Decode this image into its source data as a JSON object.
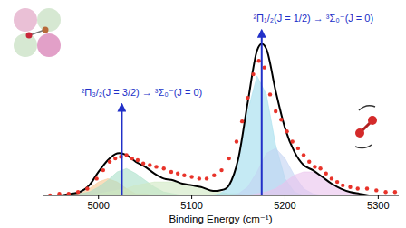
{
  "chart_data": {
    "type": "line",
    "x_label": "Binding Energy (cm⁻¹)",
    "xlim": [
      4940,
      5322
    ],
    "xticks": [
      5000,
      5100,
      5200,
      5300
    ],
    "ylim": [
      0,
      1
    ],
    "tick_labels": "x",
    "grid": false,
    "series": [
      {
        "type": "area",
        "color": "#f6c690",
        "x": [
          4940,
          4950,
          4960,
          4970,
          4980,
          4990,
          5000,
          5010,
          5020,
          5030,
          5040,
          5050,
          5060,
          5070,
          5080
        ],
        "values": [
          0,
          0,
          0,
          0.01,
          0.01,
          0.04,
          0.08,
          0.1,
          0.08,
          0.04,
          0.01,
          0.01,
          0,
          0,
          0
        ]
      },
      {
        "type": "area",
        "color": "#a8e0c8",
        "x": [
          4970,
          4980,
          4990,
          5000,
          5010,
          5020,
          5030,
          5040,
          5050,
          5060,
          5070,
          5080,
          5090
        ],
        "values": [
          0,
          0.01,
          0.02,
          0.05,
          0.09,
          0.14,
          0.16,
          0.13,
          0.09,
          0.05,
          0.02,
          0.01,
          0
        ]
      },
      {
        "type": "area",
        "color": "#cfe8c2",
        "x": [
          4990,
          5000,
          5010,
          5020,
          5030,
          5040,
          5050,
          5060,
          5070,
          5080,
          5090,
          5100,
          5110,
          5120,
          5130,
          5140,
          5150,
          5160
        ],
        "values": [
          0,
          0.01,
          0.02,
          0.03,
          0.04,
          0.06,
          0.07,
          0.08,
          0.08,
          0.08,
          0.07,
          0.06,
          0.05,
          0.03,
          0.02,
          0.01,
          0.01,
          0
        ]
      },
      {
        "type": "area",
        "color": "#9fdcec",
        "x": [
          5120,
          5130,
          5140,
          5150,
          5160,
          5170,
          5180,
          5190,
          5200,
          5210,
          5220
        ],
        "values": [
          0,
          0.01,
          0.05,
          0.2,
          0.5,
          0.71,
          0.6,
          0.3,
          0.1,
          0.02,
          0
        ]
      },
      {
        "type": "area",
        "color": "#c2d2f2",
        "x": [
          5140,
          5150,
          5160,
          5170,
          5180,
          5190,
          5200,
          5210,
          5220,
          5230,
          5240
        ],
        "values": [
          0,
          0.01,
          0.05,
          0.14,
          0.25,
          0.28,
          0.22,
          0.12,
          0.04,
          0.01,
          0
        ]
      },
      {
        "type": "area",
        "color": "#eac2ec",
        "x": [
          5160,
          5170,
          5180,
          5190,
          5200,
          5210,
          5220,
          5230,
          5240,
          5250,
          5260,
          5270,
          5280,
          5290
        ],
        "values": [
          0,
          0.01,
          0.02,
          0.04,
          0.08,
          0.12,
          0.14,
          0.14,
          0.11,
          0.07,
          0.04,
          0.02,
          0.01,
          0
        ]
      },
      {
        "type": "line",
        "color": "#000000",
        "x": [
          4940,
          4950,
          4960,
          4970,
          4980,
          4990,
          5000,
          5010,
          5020,
          5030,
          5040,
          5050,
          5060,
          5070,
          5080,
          5090,
          5100,
          5110,
          5120,
          5130,
          5140,
          5150,
          5160,
          5170,
          5180,
          5190,
          5200,
          5210,
          5220,
          5230,
          5240,
          5250,
          5260,
          5270,
          5280,
          5290,
          5300,
          5310,
          5320
        ],
        "values": [
          0,
          0,
          0,
          0.01,
          0.02,
          0.06,
          0.14,
          0.21,
          0.25,
          0.24,
          0.2,
          0.17,
          0.13,
          0.1,
          0.09,
          0.07,
          0.06,
          0.05,
          0.03,
          0.03,
          0.06,
          0.22,
          0.55,
          0.86,
          0.87,
          0.62,
          0.4,
          0.26,
          0.18,
          0.15,
          0.11,
          0.07,
          0.04,
          0.02,
          0.01,
          0,
          0,
          0,
          0
        ]
      },
      {
        "type": "scatter",
        "color": "#e8332a",
        "marker": "circle",
        "x": [
          4948,
          4958,
          4968,
          4978,
          4988,
          4998,
          5005,
          5012,
          5018,
          5024,
          5030,
          5036,
          5042,
          5048,
          5055,
          5062,
          5070,
          5078,
          5085,
          5092,
          5100,
          5108,
          5116,
          5124,
          5132,
          5140,
          5148,
          5154,
          5160,
          5166,
          5172,
          5178,
          5184,
          5190,
          5196,
          5202,
          5208,
          5214,
          5220,
          5226,
          5232,
          5238,
          5244,
          5250,
          5256,
          5262,
          5270,
          5278,
          5288,
          5298,
          5308,
          5318
        ],
        "values": [
          0,
          0.01,
          0.01,
          0.02,
          0.04,
          0.1,
          0.15,
          0.2,
          0.22,
          0.23,
          0.24,
          0.22,
          0.21,
          0.19,
          0.18,
          0.17,
          0.16,
          0.14,
          0.13,
          0.12,
          0.11,
          0.1,
          0.1,
          0.12,
          0.15,
          0.22,
          0.32,
          0.44,
          0.58,
          0.72,
          0.8,
          0.76,
          0.6,
          0.5,
          0.45,
          0.38,
          0.32,
          0.28,
          0.24,
          0.2,
          0.17,
          0.16,
          0.13,
          0.1,
          0.08,
          0.06,
          0.05,
          0.04,
          0.04,
          0.03,
          0.02,
          0.02
        ]
      },
      {
        "type": "stick",
        "color": "#2130c8",
        "x": [
          5025,
          5175
        ],
        "values": [
          0.54,
          0.98
        ]
      }
    ],
    "annotations": [
      {
        "text": "²Π₃/₂(J = 3/2) → ³Σ₀⁻(J = 0)",
        "x": 5025
      },
      {
        "text": "²Π₁/₂(J = 1/2) → ³Σ₀⁻(J = 0)",
        "x": 5175
      }
    ]
  }
}
